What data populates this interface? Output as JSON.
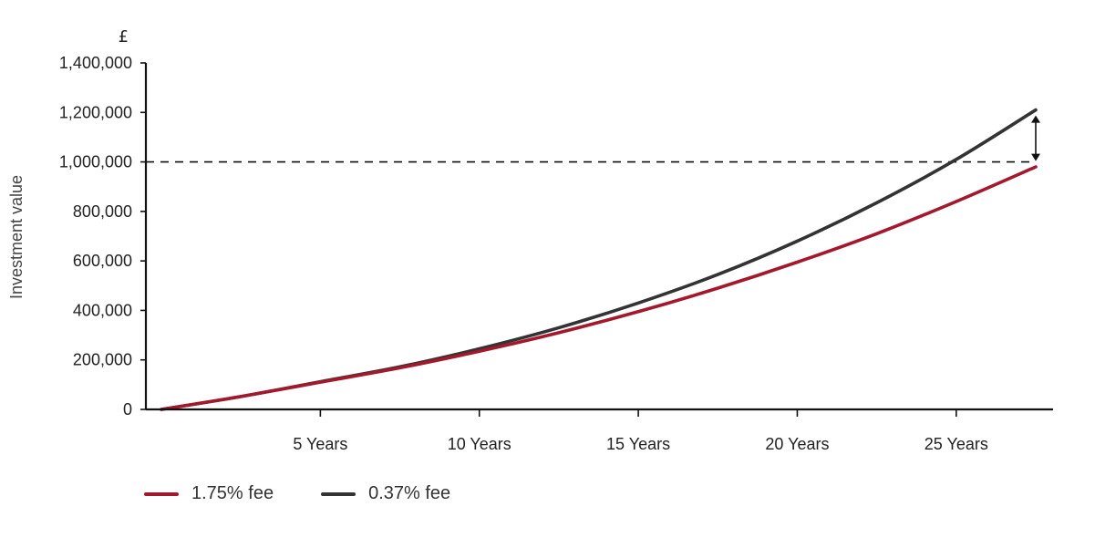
{
  "chart_data": {
    "type": "line",
    "unit_symbol": "£",
    "ylabel": "Investment value",
    "xlabel": "",
    "ylim": [
      0,
      1400000
    ],
    "xlim": [
      0,
      27.5
    ],
    "y_ticks": [
      0,
      200000,
      400000,
      600000,
      800000,
      1000000,
      1200000,
      1400000
    ],
    "y_tick_labels": [
      "0",
      "200,000",
      "400,000",
      "600,000",
      "800,000",
      "1,000,000",
      "1,200,000",
      "1,400,000"
    ],
    "x_ticks": [
      5,
      10,
      15,
      20,
      25
    ],
    "x_tick_labels": [
      "5 Years",
      "10 Years",
      "15 Years",
      "20 Years",
      "25 Years"
    ],
    "reference_line": {
      "y": 1000000,
      "style": "dashed"
    },
    "gap_arrow": {
      "x": 27.5,
      "from": 980000,
      "to": 1210000
    },
    "legend_position": "bottom-left",
    "series": [
      {
        "name": "1.75% fee",
        "color": "#a3182c",
        "x": [
          0,
          2.5,
          5,
          7.5,
          10,
          12.5,
          15,
          17.5,
          20,
          22.5,
          25,
          27.5
        ],
        "values": [
          0,
          52000,
          110000,
          168000,
          235000,
          310000,
          395000,
          490000,
          595000,
          710000,
          840000,
          980000
        ]
      },
      {
        "name": "0.37% fee",
        "color": "#333333",
        "x": [
          0,
          2.5,
          5,
          7.5,
          10,
          12.5,
          15,
          17.5,
          20,
          22.5,
          25,
          27.5
        ],
        "values": [
          0,
          52000,
          112000,
          172000,
          245000,
          330000,
          430000,
          545000,
          680000,
          835000,
          1010000,
          1210000
        ]
      }
    ]
  }
}
